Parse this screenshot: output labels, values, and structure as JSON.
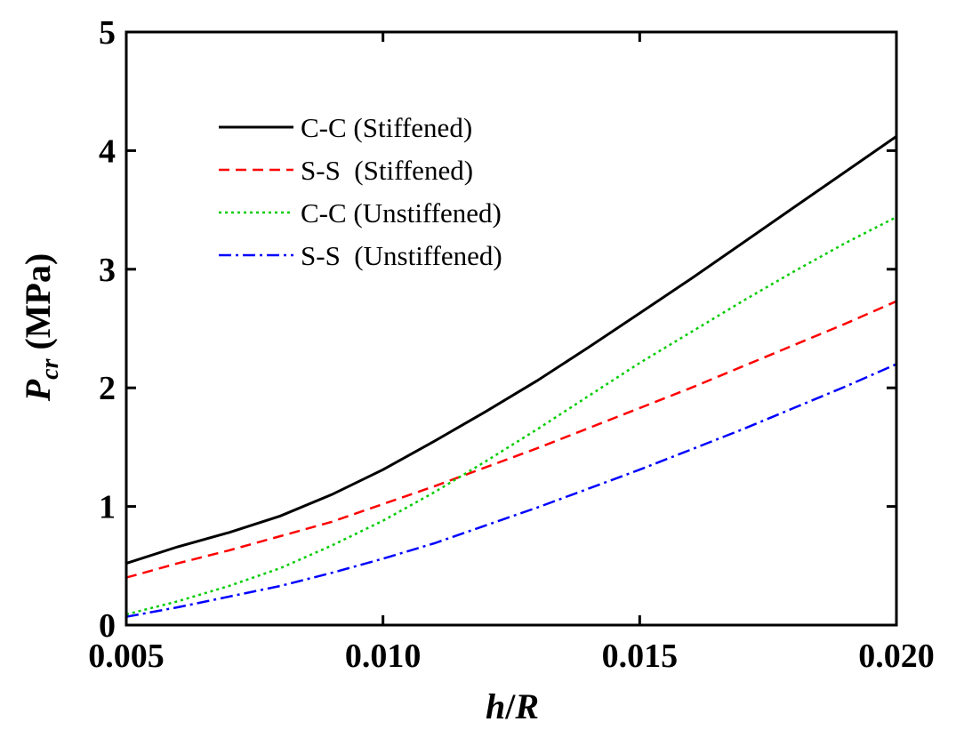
{
  "chart_data": {
    "type": "line",
    "title": "",
    "xlabel": {
      "main": "h",
      "sep": "/",
      "tail": "R"
    },
    "ylabel": {
      "main": "P",
      "sub": "cr",
      "unit": " (MPa)"
    },
    "xlim": [
      0.005,
      0.02
    ],
    "ylim": [
      0,
      5
    ],
    "x_ticks": [
      {
        "value": 0.005,
        "label": "0.005"
      },
      {
        "value": 0.01,
        "label": "0.010"
      },
      {
        "value": 0.015,
        "label": "0.015"
      },
      {
        "value": 0.02,
        "label": "0.020"
      }
    ],
    "y_ticks": [
      {
        "value": 0,
        "label": "0"
      },
      {
        "value": 1,
        "label": "1"
      },
      {
        "value": 2,
        "label": "2"
      },
      {
        "value": 3,
        "label": "3"
      },
      {
        "value": 4,
        "label": "4"
      },
      {
        "value": 5,
        "label": "5"
      }
    ],
    "grid": false,
    "legend_position": "top-left",
    "x": [
      0.005,
      0.006,
      0.007,
      0.008,
      0.009,
      0.01,
      0.011,
      0.012,
      0.013,
      0.014,
      0.015,
      0.016,
      0.017,
      0.018,
      0.019,
      0.02
    ],
    "series": [
      {
        "key": "cc-stiffened",
        "name": "C-C (Stiffened)",
        "color": "#000000",
        "dash": "solid",
        "values": [
          0.52,
          0.66,
          0.78,
          0.92,
          1.1,
          1.31,
          1.55,
          1.8,
          2.06,
          2.34,
          2.63,
          2.92,
          3.22,
          3.52,
          3.82,
          4.12
        ]
      },
      {
        "key": "ss-stiffened",
        "name": "S-S  (Stiffened)",
        "color": "#ff0000",
        "dash": "dashed",
        "values": [
          0.4,
          0.52,
          0.63,
          0.75,
          0.87,
          1.02,
          1.17,
          1.33,
          1.49,
          1.66,
          1.83,
          2.0,
          2.18,
          2.36,
          2.54,
          2.73
        ]
      },
      {
        "key": "cc-unstiffened",
        "name": "C-C (Unstiffened)",
        "color": "#00cc00",
        "dash": "dotted",
        "values": [
          0.09,
          0.2,
          0.33,
          0.48,
          0.67,
          0.88,
          1.12,
          1.38,
          1.65,
          1.93,
          2.21,
          2.47,
          2.73,
          2.98,
          3.22,
          3.44
        ]
      },
      {
        "key": "ss-unstiffened",
        "name": "S-S  (Unstiffened)",
        "color": "#0000ff",
        "dash": "dashdot",
        "values": [
          0.07,
          0.15,
          0.24,
          0.33,
          0.44,
          0.56,
          0.69,
          0.84,
          0.99,
          1.15,
          1.31,
          1.48,
          1.65,
          1.83,
          2.01,
          2.2
        ]
      }
    ]
  }
}
